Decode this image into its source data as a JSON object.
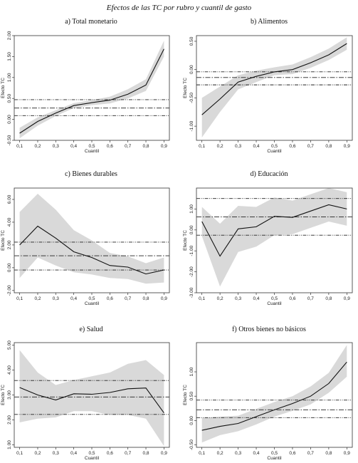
{
  "figure_title": "Efectos de las TC por rubro y cuantil de gasto",
  "chart_data": [
    {
      "type": "line",
      "title": "a) Total monetario",
      "xlabel": "Cuantil",
      "ylabel": "Efecto TC",
      "x": [
        0.1,
        0.2,
        0.3,
        0.4,
        0.5,
        0.6,
        0.7,
        0.8,
        0.9
      ],
      "xticks": [
        "0,1",
        "0,2",
        "0,3",
        "0,4",
        "0,5",
        "0,6",
        "0,7",
        "0,8",
        "0,9"
      ],
      "ylim": [
        -0.5,
        2.0
      ],
      "yticks": [
        -0.5,
        0.0,
        0.5,
        1.0,
        1.5,
        2.0
      ],
      "ytick_labels": [
        "-0.50",
        "0.00",
        "0.50",
        "1.00",
        "1.50",
        "2.00"
      ],
      "estimate": [
        -0.33,
        -0.05,
        0.15,
        0.33,
        0.4,
        0.46,
        0.6,
        0.82,
        1.68
      ],
      "ci_lower": [
        -0.45,
        -0.15,
        0.08,
        0.27,
        0.34,
        0.38,
        0.5,
        0.68,
        1.5
      ],
      "ci_upper": [
        -0.2,
        0.05,
        0.22,
        0.39,
        0.46,
        0.54,
        0.72,
        0.96,
        1.88
      ],
      "ols_estimate": 0.27,
      "ols_ci": [
        0.09,
        0.47
      ]
    },
    {
      "type": "line",
      "title": "b) Alimentos",
      "xlabel": "Cuantil",
      "ylabel": "Efecto TC",
      "x": [
        0.1,
        0.2,
        0.3,
        0.4,
        0.5,
        0.6,
        0.7,
        0.8,
        0.9
      ],
      "xticks": [
        "0,1",
        "0,2",
        "0,3",
        "0,4",
        "0,5",
        "0,6",
        "0,7",
        "0,8",
        "0,9"
      ],
      "ylim": [
        -1.25,
        0.6
      ],
      "yticks": [
        -1.0,
        -0.5,
        0.0,
        0.5
      ],
      "ytick_labels": [
        "-1.00",
        "-0.50",
        "0.00",
        "0.50"
      ],
      "estimate": [
        -0.8,
        -0.52,
        -0.22,
        -0.12,
        -0.04,
        0.0,
        0.12,
        0.26,
        0.46
      ],
      "ci_lower": [
        -1.2,
        -0.75,
        -0.35,
        -0.22,
        -0.1,
        -0.08,
        0.03,
        0.17,
        0.35
      ],
      "ci_upper": [
        -0.5,
        -0.3,
        -0.1,
        -0.02,
        0.04,
        0.09,
        0.22,
        0.37,
        0.57
      ],
      "ols_estimate": -0.14,
      "ols_ci": [
        -0.27,
        -0.04
      ]
    },
    {
      "type": "line",
      "title": "c) Bienes durables",
      "xlabel": "Cuantil",
      "ylabel": "Efecto TC",
      "x": [
        0.1,
        0.2,
        0.3,
        0.4,
        0.5,
        0.6,
        0.7,
        0.8,
        0.9
      ],
      "xticks": [
        "0,1",
        "0,2",
        "0,3",
        "0,4",
        "0,5",
        "0,6",
        "0,7",
        "0,8",
        "0,9"
      ],
      "ylim": [
        -2.2,
        7.0
      ],
      "yticks": [
        -2.0,
        0.0,
        2.0,
        4.0,
        6.0
      ],
      "ytick_labels": [
        "-2.00",
        "0.00",
        "2.00",
        "4.00",
        "6.00"
      ],
      "estimate": [
        2.0,
        3.65,
        2.6,
        1.4,
        0.9,
        0.2,
        0.05,
        -0.55,
        -0.2
      ],
      "ci_lower": [
        -0.9,
        0.9,
        0.2,
        -0.4,
        -0.6,
        -0.9,
        -1.0,
        -1.4,
        -1.3
      ],
      "ci_upper": [
        4.9,
        6.5,
        5.1,
        3.3,
        2.4,
        1.3,
        1.0,
        0.4,
        0.9
      ],
      "ols_estimate": 1.05,
      "ols_ci": [
        -0.2,
        2.25
      ]
    },
    {
      "type": "line",
      "title": "d) Educación",
      "xlabel": "Cuantil",
      "ylabel": "Efecto TC",
      "x": [
        0.1,
        0.2,
        0.3,
        0.4,
        0.5,
        0.6,
        0.7,
        0.8,
        0.9
      ],
      "xticks": [
        "0,1",
        "0,2",
        "0,3",
        "0,4",
        "0,5",
        "0,6",
        "0,7",
        "0,8",
        "0,9"
      ],
      "ylim": [
        -3.0,
        2.0
      ],
      "yticks": [
        -3.0,
        -2.0,
        -1.0,
        0.0,
        1.0
      ],
      "ytick_labels": [
        "-3.00",
        "-2.00",
        "-1.00",
        "0.00",
        "1.00"
      ],
      "estimate": [
        0.4,
        -1.25,
        0.05,
        0.15,
        0.65,
        0.6,
        0.9,
        1.2,
        1.0
      ],
      "ci_lower": [
        -0.3,
        -2.7,
        -1.05,
        -0.8,
        -0.25,
        -0.2,
        0.1,
        0.4,
        0.2
      ],
      "ci_upper": [
        1.1,
        0.3,
        1.15,
        1.1,
        1.55,
        1.4,
        1.7,
        2.0,
        1.8
      ],
      "ols_estimate": 0.62,
      "ols_ci": [
        -0.25,
        1.5
      ]
    },
    {
      "type": "line",
      "title": "e) Salud",
      "xlabel": "Cuantil",
      "ylabel": "Efecto TC",
      "x": [
        0.1,
        0.2,
        0.3,
        0.4,
        0.5,
        0.6,
        0.7,
        0.8,
        0.9
      ],
      "xticks": [
        "0,1",
        "0,2",
        "0,3",
        "0,4",
        "0,5",
        "0,6",
        "0,7",
        "0,8",
        "0,9"
      ],
      "ylim": [
        0.9,
        5.1
      ],
      "yticks": [
        1.0,
        2.0,
        3.0,
        4.0,
        5.0
      ],
      "ytick_labels": [
        "1.00",
        "2.00",
        "3.00",
        "4.00",
        "5.00"
      ],
      "estimate": [
        3.3,
        3.0,
        2.8,
        3.05,
        3.03,
        3.1,
        3.25,
        3.28,
        2.28
      ],
      "ci_lower": [
        1.9,
        2.05,
        2.1,
        2.35,
        2.35,
        2.2,
        2.2,
        2.05,
        0.95
      ],
      "ci_upper": [
        4.8,
        3.9,
        3.4,
        3.6,
        3.75,
        3.9,
        4.25,
        4.4,
        3.8
      ],
      "ols_estimate": 2.92,
      "ols_ci": [
        2.22,
        3.58
      ]
    },
    {
      "type": "line",
      "title": "f) Otros bienes no básicos",
      "xlabel": "Cuantil",
      "ylabel": "Efecto TC",
      "x": [
        0.1,
        0.2,
        0.3,
        0.4,
        0.5,
        0.6,
        0.7,
        0.8,
        0.9
      ],
      "xticks": [
        "0,1",
        "0,2",
        "0,3",
        "0,4",
        "0,5",
        "0,6",
        "0,7",
        "0,8",
        "0,9"
      ],
      "ylim": [
        -0.55,
        1.6
      ],
      "yticks": [
        -0.5,
        0.0,
        0.5,
        1.0
      ],
      "ytick_labels": [
        "-0.50",
        "0.00",
        "0.50",
        "1.00"
      ],
      "estimate": [
        -0.2,
        -0.12,
        -0.06,
        0.08,
        0.22,
        0.35,
        0.5,
        0.76,
        1.2
      ],
      "ci_lower": [
        -0.45,
        -0.3,
        -0.22,
        -0.08,
        0.08,
        0.2,
        0.33,
        0.57,
        0.9
      ],
      "ci_upper": [
        0.05,
        0.08,
        0.1,
        0.24,
        0.38,
        0.5,
        0.7,
        0.98,
        1.55
      ],
      "ols_estimate": 0.22,
      "ols_ci": [
        0.06,
        0.42
      ]
    }
  ]
}
